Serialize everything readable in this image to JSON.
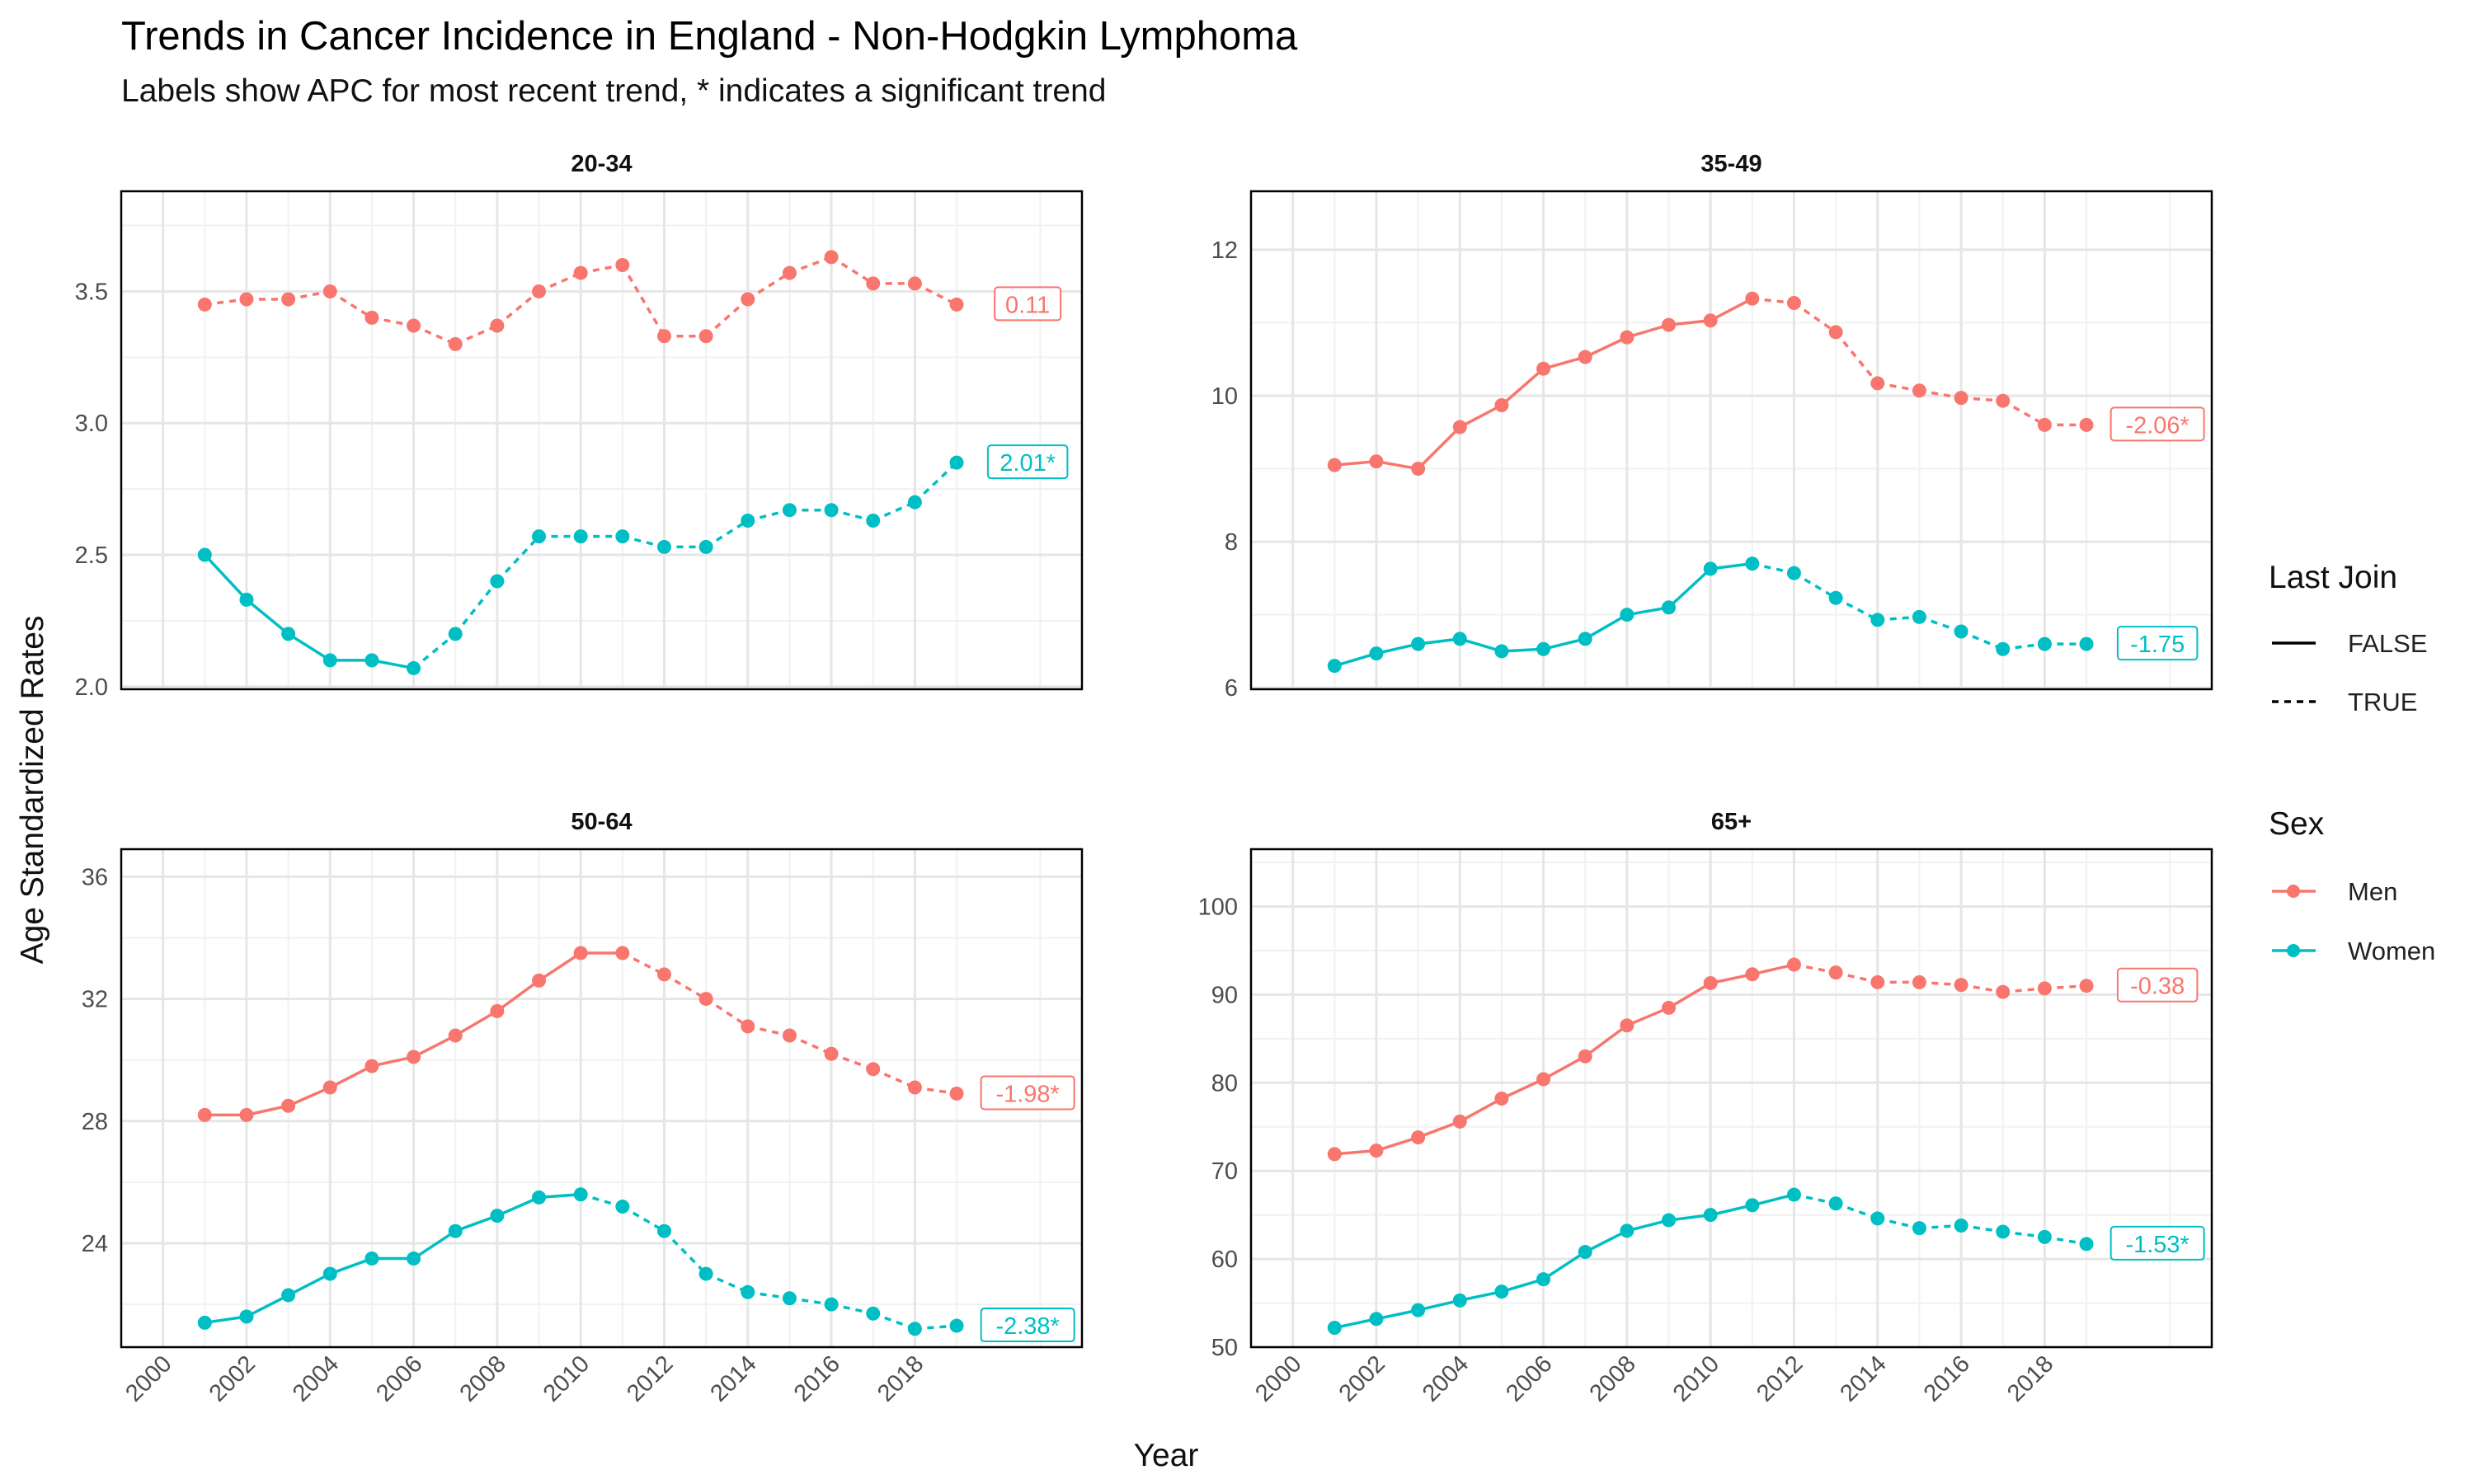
{
  "title": "Trends in Cancer Incidence in England - Non-Hodgkin Lymphoma",
  "subtitle": "Labels show APC for most recent trend, * indicates a significant trend",
  "colors": {
    "Men": "#F8766D",
    "Women": "#00BFC4"
  },
  "legend": {
    "last_join": {
      "title": "Last Join",
      "items": [
        "FALSE",
        "TRUE"
      ]
    },
    "sex": {
      "title": "Sex",
      "items": [
        "Men",
        "Women"
      ]
    }
  },
  "chart_data": {
    "type": "line",
    "xlabel": "Year",
    "ylabel": "Age Standardized Rates",
    "x_ticks": [
      2000,
      2002,
      2004,
      2006,
      2008,
      2010,
      2012,
      2014,
      2016,
      2018
    ],
    "xlim": [
      1999.0,
      2022.0
    ],
    "grid": true,
    "panels": [
      {
        "name": "20-34",
        "ylim": [
          1.99,
          3.88
        ],
        "y_ticks": [
          "2.0",
          "2.5",
          "3.0",
          "3.5"
        ],
        "series": [
          {
            "name": "Men",
            "x": [
              2001,
              2002,
              2003,
              2004,
              2005,
              2006,
              2007,
              2008,
              2009,
              2010,
              2011,
              2012,
              2013,
              2014,
              2015,
              2016,
              2017,
              2018,
              2019
            ],
            "values": [
              3.45,
              3.47,
              3.47,
              3.5,
              3.4,
              3.37,
              3.3,
              3.37,
              3.5,
              3.57,
              3.6,
              3.33,
              3.33,
              3.47,
              3.57,
              3.63,
              3.53,
              3.53,
              3.45
            ],
            "last_join_start_year": 2001,
            "label": "0.11"
          },
          {
            "name": "Women",
            "x": [
              2001,
              2002,
              2003,
              2004,
              2005,
              2006,
              2007,
              2008,
              2009,
              2010,
              2011,
              2012,
              2013,
              2014,
              2015,
              2016,
              2017,
              2018,
              2019
            ],
            "values": [
              2.5,
              2.33,
              2.2,
              2.1,
              2.1,
              2.07,
              2.2,
              2.4,
              2.57,
              2.57,
              2.57,
              2.53,
              2.53,
              2.63,
              2.67,
              2.67,
              2.63,
              2.7,
              2.85
            ],
            "last_join_start_year": 2006,
            "label": "2.01*"
          }
        ]
      },
      {
        "name": "35-49",
        "ylim": [
          5.98,
          12.8
        ],
        "y_ticks": [
          "6",
          "8",
          "10",
          "12"
        ],
        "series": [
          {
            "name": "Men",
            "x": [
              2001,
              2002,
              2003,
              2004,
              2005,
              2006,
              2007,
              2008,
              2009,
              2010,
              2011,
              2012,
              2013,
              2014,
              2015,
              2016,
              2017,
              2018,
              2019
            ],
            "values": [
              9.05,
              9.1,
              9.0,
              9.57,
              9.87,
              10.37,
              10.53,
              10.8,
              10.97,
              11.03,
              11.33,
              11.27,
              10.87,
              10.17,
              10.07,
              9.97,
              9.93,
              9.6,
              9.6
            ],
            "last_join_start_year": 2011,
            "label": "-2.06*"
          },
          {
            "name": "Women",
            "x": [
              2001,
              2002,
              2003,
              2004,
              2005,
              2006,
              2007,
              2008,
              2009,
              2010,
              2011,
              2012,
              2013,
              2014,
              2015,
              2016,
              2017,
              2018,
              2019
            ],
            "values": [
              6.3,
              6.47,
              6.6,
              6.67,
              6.5,
              6.53,
              6.67,
              7.0,
              7.1,
              7.63,
              7.7,
              7.57,
              7.23,
              6.93,
              6.97,
              6.77,
              6.53,
              6.6,
              6.6
            ],
            "last_join_start_year": 2011,
            "label": "-1.75"
          }
        ]
      },
      {
        "name": "50-64",
        "ylim": [
          20.6,
          36.9
        ],
        "y_ticks": [
          "24",
          "28",
          "32",
          "36"
        ],
        "series": [
          {
            "name": "Men",
            "x": [
              2001,
              2002,
              2003,
              2004,
              2005,
              2006,
              2007,
              2008,
              2009,
              2010,
              2011,
              2012,
              2013,
              2014,
              2015,
              2016,
              2017,
              2018,
              2019
            ],
            "values": [
              28.2,
              28.2,
              28.5,
              29.1,
              29.8,
              30.1,
              30.8,
              31.6,
              32.6,
              33.5,
              33.5,
              32.8,
              32.0,
              31.1,
              30.8,
              30.2,
              29.7,
              29.1,
              28.9
            ],
            "last_join_start_year": 2011,
            "label": "-1.98*"
          },
          {
            "name": "Women",
            "x": [
              2001,
              2002,
              2003,
              2004,
              2005,
              2006,
              2007,
              2008,
              2009,
              2010,
              2011,
              2012,
              2013,
              2014,
              2015,
              2016,
              2017,
              2018,
              2019
            ],
            "values": [
              21.4,
              21.6,
              22.3,
              23.0,
              23.5,
              23.5,
              24.4,
              24.9,
              25.5,
              25.6,
              25.2,
              24.4,
              23.0,
              22.4,
              22.2,
              22.0,
              21.7,
              21.2,
              21.3
            ],
            "last_join_start_year": 2010,
            "label": "-2.38*"
          }
        ]
      },
      {
        "name": "65+",
        "ylim": [
          50.0,
          106.5
        ],
        "y_ticks": [
          "50",
          "60",
          "70",
          "80",
          "90",
          "100"
        ],
        "series": [
          {
            "name": "Men",
            "x": [
              2001,
              2002,
              2003,
              2004,
              2005,
              2006,
              2007,
              2008,
              2009,
              2010,
              2011,
              2012,
              2013,
              2014,
              2015,
              2016,
              2017,
              2018,
              2019
            ],
            "values": [
              71.9,
              72.3,
              73.8,
              75.6,
              78.2,
              80.4,
              83.0,
              86.5,
              88.5,
              91.3,
              92.3,
              93.4,
              92.5,
              91.4,
              91.4,
              91.1,
              90.3,
              90.7,
              91.0
            ],
            "last_join_start_year": 2012,
            "label": "-0.38"
          },
          {
            "name": "Women",
            "x": [
              2001,
              2002,
              2003,
              2004,
              2005,
              2006,
              2007,
              2008,
              2009,
              2010,
              2011,
              2012,
              2013,
              2014,
              2015,
              2016,
              2017,
              2018,
              2019
            ],
            "values": [
              52.2,
              53.2,
              54.2,
              55.3,
              56.3,
              57.7,
              60.8,
              63.2,
              64.4,
              65.0,
              66.1,
              67.3,
              66.3,
              64.6,
              63.5,
              63.8,
              63.1,
              62.5,
              61.7
            ],
            "last_join_start_year": 2012,
            "label": "-1.53*"
          }
        ]
      }
    ]
  }
}
